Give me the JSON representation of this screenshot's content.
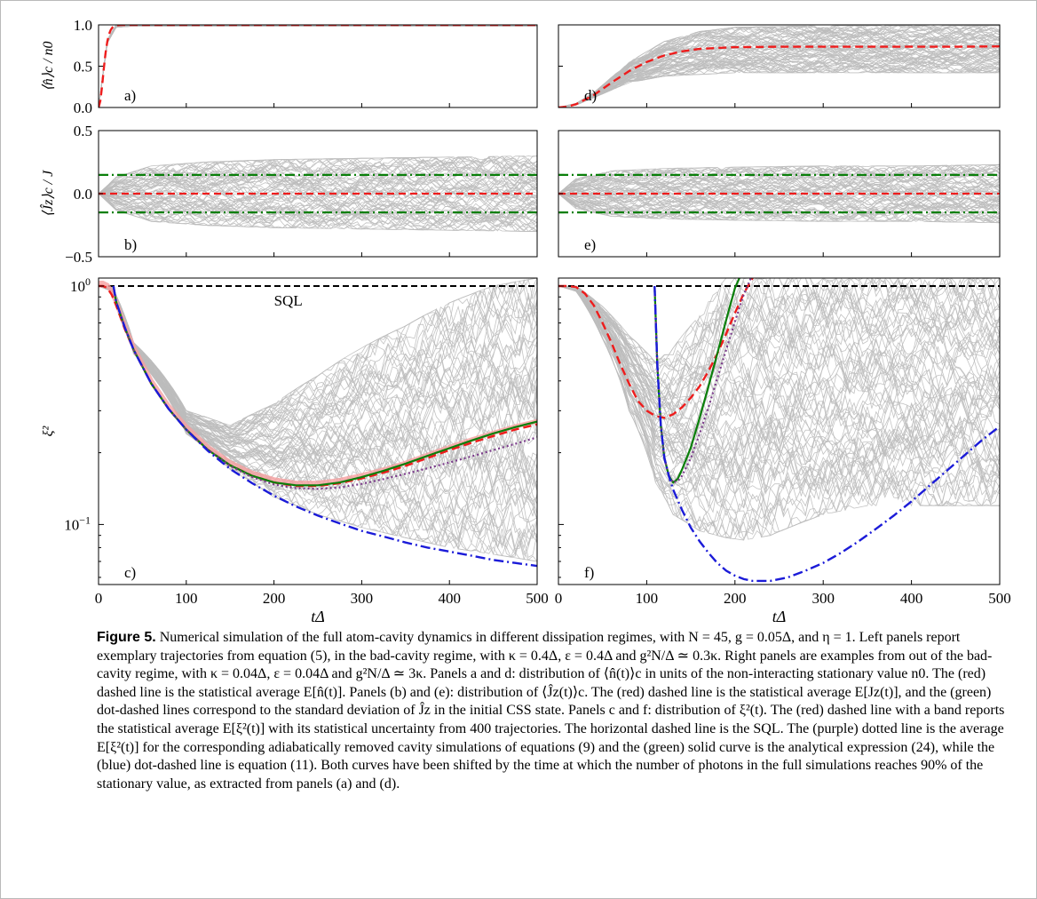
{
  "figure_label": "Figure 5.",
  "caption_text": "Numerical simulation of the full atom-cavity dynamics in different dissipation regimes, with N = 45, g = 0.05Δ, and η = 1. Left panels report exemplary trajectories from equation (5), in the bad-cavity regime, with κ = 0.4Δ, ε = 0.4Δ and g²N/Δ ≃ 0.3κ. Right panels are examples from out of the bad-cavity regime, with κ = 0.04Δ, ε = 0.04Δ and g²N/Δ ≃ 3κ. Panels a and d: distribution of ⟨n̂(t)⟩c in units of the non-interacting stationary value n0. The (red) dashed line is the statistical average E[n̂(t)]. Panels (b) and (e): distribution of ⟨Ĵz(t)⟩c. The (red) dashed line is the statistical average E[Jz(t)], and the (green) dot-dashed lines correspond to the standard deviation of Ĵz in the initial CSS state. Panels c and f: distribution of ξ²(t). The (red) dashed line with a band reports the statistical average E[ξ²(t)] with its statistical uncertainty from 400 trajectories. The horizontal dashed line is the SQL. The (purple) dotted line is the average E[ξ²(t)] for the corresponding adiabatically removed cavity simulations of equations (9) and the (green) solid curve is the analytical expression (24), while the (blue) dot-dashed line is equation (11). Both curves have been shifted by the time at which the number of photons in the full simulations reaches 90% of the stationary value, as extracted from panels (a) and (d).",
  "colors": {
    "trajectories": "#bdbdbd",
    "average_red": "#ee1c1c",
    "sql_black": "#000000",
    "green": "#0a7f0a",
    "blue": "#1b1bd8",
    "purple": "#7a3a8a",
    "band_red": "#f6a0a0"
  },
  "chart_data": [
    {
      "panel": "a)",
      "type": "line",
      "ylabel": "⟨n̂⟩c / n0",
      "xlabel": "",
      "xlim": [
        0,
        500
      ],
      "ylim": [
        0,
        1
      ],
      "yticks": [
        "0.0",
        "0.5",
        "1.0"
      ],
      "series": [
        {
          "x": [
            0,
            2,
            4,
            6,
            8,
            10,
            12,
            14,
            16,
            18,
            20,
            25,
            30,
            40,
            60,
            100,
            200,
            300,
            400,
            500
          ],
          "values": [
            0,
            0.08,
            0.26,
            0.47,
            0.66,
            0.8,
            0.89,
            0.94,
            0.97,
            0.985,
            0.995,
            1.0,
            1.0,
            1.0,
            1.0,
            1.0,
            1.0,
            1.0,
            1.0,
            1.0
          ]
        }
      ],
      "spread": {
        "x": [
          0,
          10,
          20,
          40,
          500
        ],
        "low": [
          0,
          0.78,
          0.97,
          0.985,
          0.985
        ],
        "high": [
          0,
          0.82,
          1.0,
          1.015,
          1.015
        ]
      }
    },
    {
      "panel": "d)",
      "type": "line",
      "xlim": [
        0,
        500
      ],
      "ylim": [
        0,
        1
      ],
      "series": [
        {
          "x": [
            0,
            10,
            20,
            40,
            60,
            80,
            100,
            120,
            140,
            160,
            180,
            200,
            250,
            300,
            350,
            400,
            450,
            500
          ],
          "values": [
            0,
            0.01,
            0.04,
            0.15,
            0.3,
            0.44,
            0.55,
            0.63,
            0.68,
            0.71,
            0.72,
            0.73,
            0.735,
            0.735,
            0.735,
            0.735,
            0.735,
            0.74
          ]
        }
      ],
      "spread": {
        "x": [
          0,
          20,
          40,
          80,
          120,
          160,
          200,
          300,
          500
        ],
        "low": [
          0,
          0.03,
          0.12,
          0.3,
          0.38,
          0.4,
          0.42,
          0.42,
          0.42
        ],
        "high": [
          0,
          0.05,
          0.18,
          0.55,
          0.8,
          0.92,
          0.97,
          0.99,
          0.99
        ]
      }
    },
    {
      "panel": "b)",
      "type": "line",
      "ylabel": "⟨Ĵz⟩c / J",
      "xlabel": "",
      "xlim": [
        0,
        500
      ],
      "ylim": [
        -0.5,
        0.5
      ],
      "yticks": [
        "−0.5",
        "0.0",
        "0.5"
      ],
      "average": 0,
      "std_lines": [
        0.149,
        -0.149
      ],
      "spread": {
        "x": [
          0,
          20,
          60,
          120,
          200,
          300,
          400,
          500
        ],
        "low": [
          0,
          -0.13,
          -0.22,
          -0.25,
          -0.27,
          -0.28,
          -0.29,
          -0.3
        ],
        "high": [
          0,
          0.13,
          0.22,
          0.25,
          0.27,
          0.28,
          0.29,
          0.3
        ]
      }
    },
    {
      "panel": "e)",
      "type": "line",
      "xlim": [
        0,
        500
      ],
      "ylim": [
        -0.5,
        0.5
      ],
      "average": 0,
      "std_lines": [
        0.149,
        -0.149
      ],
      "spread": {
        "x": [
          0,
          20,
          60,
          120,
          200,
          300,
          400,
          500
        ],
        "low": [
          0,
          -0.12,
          -0.18,
          -0.2,
          -0.21,
          -0.22,
          -0.22,
          -0.23
        ],
        "high": [
          0,
          0.12,
          0.18,
          0.2,
          0.21,
          0.22,
          0.22,
          0.23
        ]
      }
    },
    {
      "panel": "c)",
      "type": "line",
      "yscale": "log",
      "ylabel": "ξ²",
      "xlabel": "tΔ",
      "xlim": [
        0,
        500
      ],
      "ylim": [
        0.056,
        1.08
      ],
      "xticks": [
        "0",
        "100",
        "200",
        "300",
        "400",
        "500"
      ],
      "yticks": [
        {
          "value": 1,
          "base": "10",
          "exp": "0"
        },
        {
          "value": 0.1,
          "base": "10",
          "exp": "−1"
        }
      ],
      "annotation": "SQL",
      "series": [
        {
          "name": "E[ξ²(t)]",
          "x": [
            0,
            5,
            10,
            15,
            20,
            30,
            40,
            60,
            80,
            100,
            125,
            150,
            175,
            200,
            225,
            250,
            275,
            300,
            325,
            350,
            375,
            400,
            425,
            450,
            475,
            500
          ],
          "values": [
            1.0,
            1.0,
            0.98,
            0.92,
            0.83,
            0.66,
            0.54,
            0.39,
            0.305,
            0.25,
            0.205,
            0.177,
            0.16,
            0.15,
            0.145,
            0.145,
            0.149,
            0.156,
            0.165,
            0.176,
            0.19,
            0.205,
            0.22,
            0.235,
            0.25,
            0.263
          ]
        },
        {
          "name": "analytical (24)",
          "x": [
            17,
            20,
            30,
            40,
            60,
            80,
            100,
            125,
            150,
            175,
            200,
            225,
            250,
            275,
            300,
            325,
            350,
            375,
            400,
            425,
            450,
            475,
            500
          ],
          "values": [
            1.0,
            0.86,
            0.67,
            0.54,
            0.39,
            0.305,
            0.25,
            0.205,
            0.177,
            0.16,
            0.15,
            0.146,
            0.146,
            0.15,
            0.158,
            0.168,
            0.18,
            0.194,
            0.209,
            0.225,
            0.241,
            0.256,
            0.27
          ]
        },
        {
          "name": "adiabatic (9)",
          "x": [
            17,
            20,
            30,
            40,
            60,
            80,
            100,
            125,
            150,
            175,
            200,
            225,
            250,
            275,
            300,
            325,
            350,
            375,
            400,
            425,
            450,
            475,
            500
          ],
          "values": [
            1.0,
            0.86,
            0.67,
            0.54,
            0.39,
            0.305,
            0.25,
            0.205,
            0.176,
            0.158,
            0.147,
            0.142,
            0.141,
            0.143,
            0.148,
            0.155,
            0.163,
            0.172,
            0.182,
            0.193,
            0.205,
            0.218,
            0.232
          ]
        },
        {
          "name": "equation (11)",
          "x": [
            17,
            20,
            30,
            40,
            60,
            80,
            100,
            125,
            150,
            175,
            200,
            225,
            250,
            275,
            300,
            325,
            350,
            375,
            400,
            425,
            450,
            475,
            500
          ],
          "values": [
            1.0,
            0.86,
            0.67,
            0.54,
            0.39,
            0.305,
            0.25,
            0.203,
            0.171,
            0.149,
            0.132,
            0.119,
            0.109,
            0.101,
            0.094,
            0.089,
            0.084,
            0.08,
            0.077,
            0.074,
            0.071,
            0.069,
            0.067
          ]
        }
      ],
      "sql": 1,
      "spread": {
        "x": [
          0,
          15,
          40,
          100,
          150,
          200,
          250,
          300,
          350,
          400,
          450,
          500
        ],
        "low": [
          1,
          0.95,
          0.52,
          0.24,
          0.17,
          0.13,
          0.11,
          0.097,
          0.088,
          0.08,
          0.075,
          0.07
        ],
        "high": [
          1,
          1,
          0.58,
          0.3,
          0.26,
          0.32,
          0.42,
          0.55,
          0.68,
          0.85,
          1.0,
          1.08
        ]
      }
    },
    {
      "panel": "f)",
      "type": "line",
      "yscale": "log",
      "xlabel": "tΔ",
      "xlim": [
        0,
        500
      ],
      "ylim": [
        0.056,
        1.08
      ],
      "xticks": [
        "0",
        "100",
        "200",
        "300",
        "400",
        "500"
      ],
      "series": [
        {
          "name": "E[ξ²(t)]",
          "x": [
            0,
            10,
            20,
            30,
            40,
            50,
            60,
            70,
            80,
            90,
            100,
            110,
            120,
            130,
            140,
            150,
            160,
            170,
            180,
            190,
            200,
            210,
            220
          ],
          "values": [
            1.0,
            1.0,
            0.99,
            0.93,
            0.83,
            0.7,
            0.58,
            0.47,
            0.39,
            0.33,
            0.3,
            0.285,
            0.28,
            0.29,
            0.31,
            0.34,
            0.38,
            0.44,
            0.52,
            0.63,
            0.77,
            0.93,
            1.08
          ]
        },
        {
          "name": "analytical (24)",
          "x": [
            109,
            112,
            116,
            120,
            125,
            130,
            135,
            140,
            150,
            160,
            170,
            180,
            190,
            200,
            205
          ],
          "values": [
            1.0,
            0.47,
            0.26,
            0.19,
            0.16,
            0.15,
            0.155,
            0.17,
            0.21,
            0.28,
            0.38,
            0.52,
            0.72,
            0.98,
            1.08
          ]
        },
        {
          "name": "adiabatic (9)",
          "x": [
            109,
            112,
            116,
            120,
            125,
            130,
            135,
            140,
            150,
            160,
            170,
            180,
            190,
            200,
            210,
            218
          ],
          "values": [
            1.0,
            0.47,
            0.26,
            0.19,
            0.16,
            0.15,
            0.152,
            0.16,
            0.19,
            0.24,
            0.31,
            0.41,
            0.54,
            0.71,
            0.92,
            1.08
          ]
        },
        {
          "name": "equation (11)",
          "x": [
            109,
            112,
            116,
            120,
            125,
            130,
            140,
            150,
            160,
            170,
            180,
            190,
            200,
            210,
            220,
            240,
            260,
            280,
            300,
            320,
            340,
            360,
            380,
            400,
            420,
            440,
            460,
            480,
            500
          ],
          "values": [
            1.0,
            0.47,
            0.26,
            0.19,
            0.16,
            0.14,
            0.115,
            0.097,
            0.085,
            0.076,
            0.069,
            0.064,
            0.061,
            0.059,
            0.058,
            0.058,
            0.06,
            0.064,
            0.069,
            0.076,
            0.085,
            0.096,
            0.109,
            0.125,
            0.145,
            0.168,
            0.195,
            0.226,
            0.258
          ]
        }
      ],
      "sql": 1,
      "spread": {
        "x": [
          0,
          20,
          50,
          80,
          110,
          130,
          160,
          190,
          210,
          240,
          270,
          300,
          350,
          400,
          450,
          500
        ],
        "low": [
          1,
          0.95,
          0.6,
          0.3,
          0.15,
          0.11,
          0.094,
          0.088,
          0.086,
          0.09,
          0.1,
          0.11,
          0.12,
          0.12,
          0.12,
          0.12
        ],
        "high": [
          1,
          1,
          0.82,
          0.62,
          0.48,
          0.55,
          0.75,
          1.08,
          1.08,
          1.08,
          1.08,
          1.08,
          1.08,
          1.08,
          1.08,
          1.08
        ]
      }
    }
  ]
}
